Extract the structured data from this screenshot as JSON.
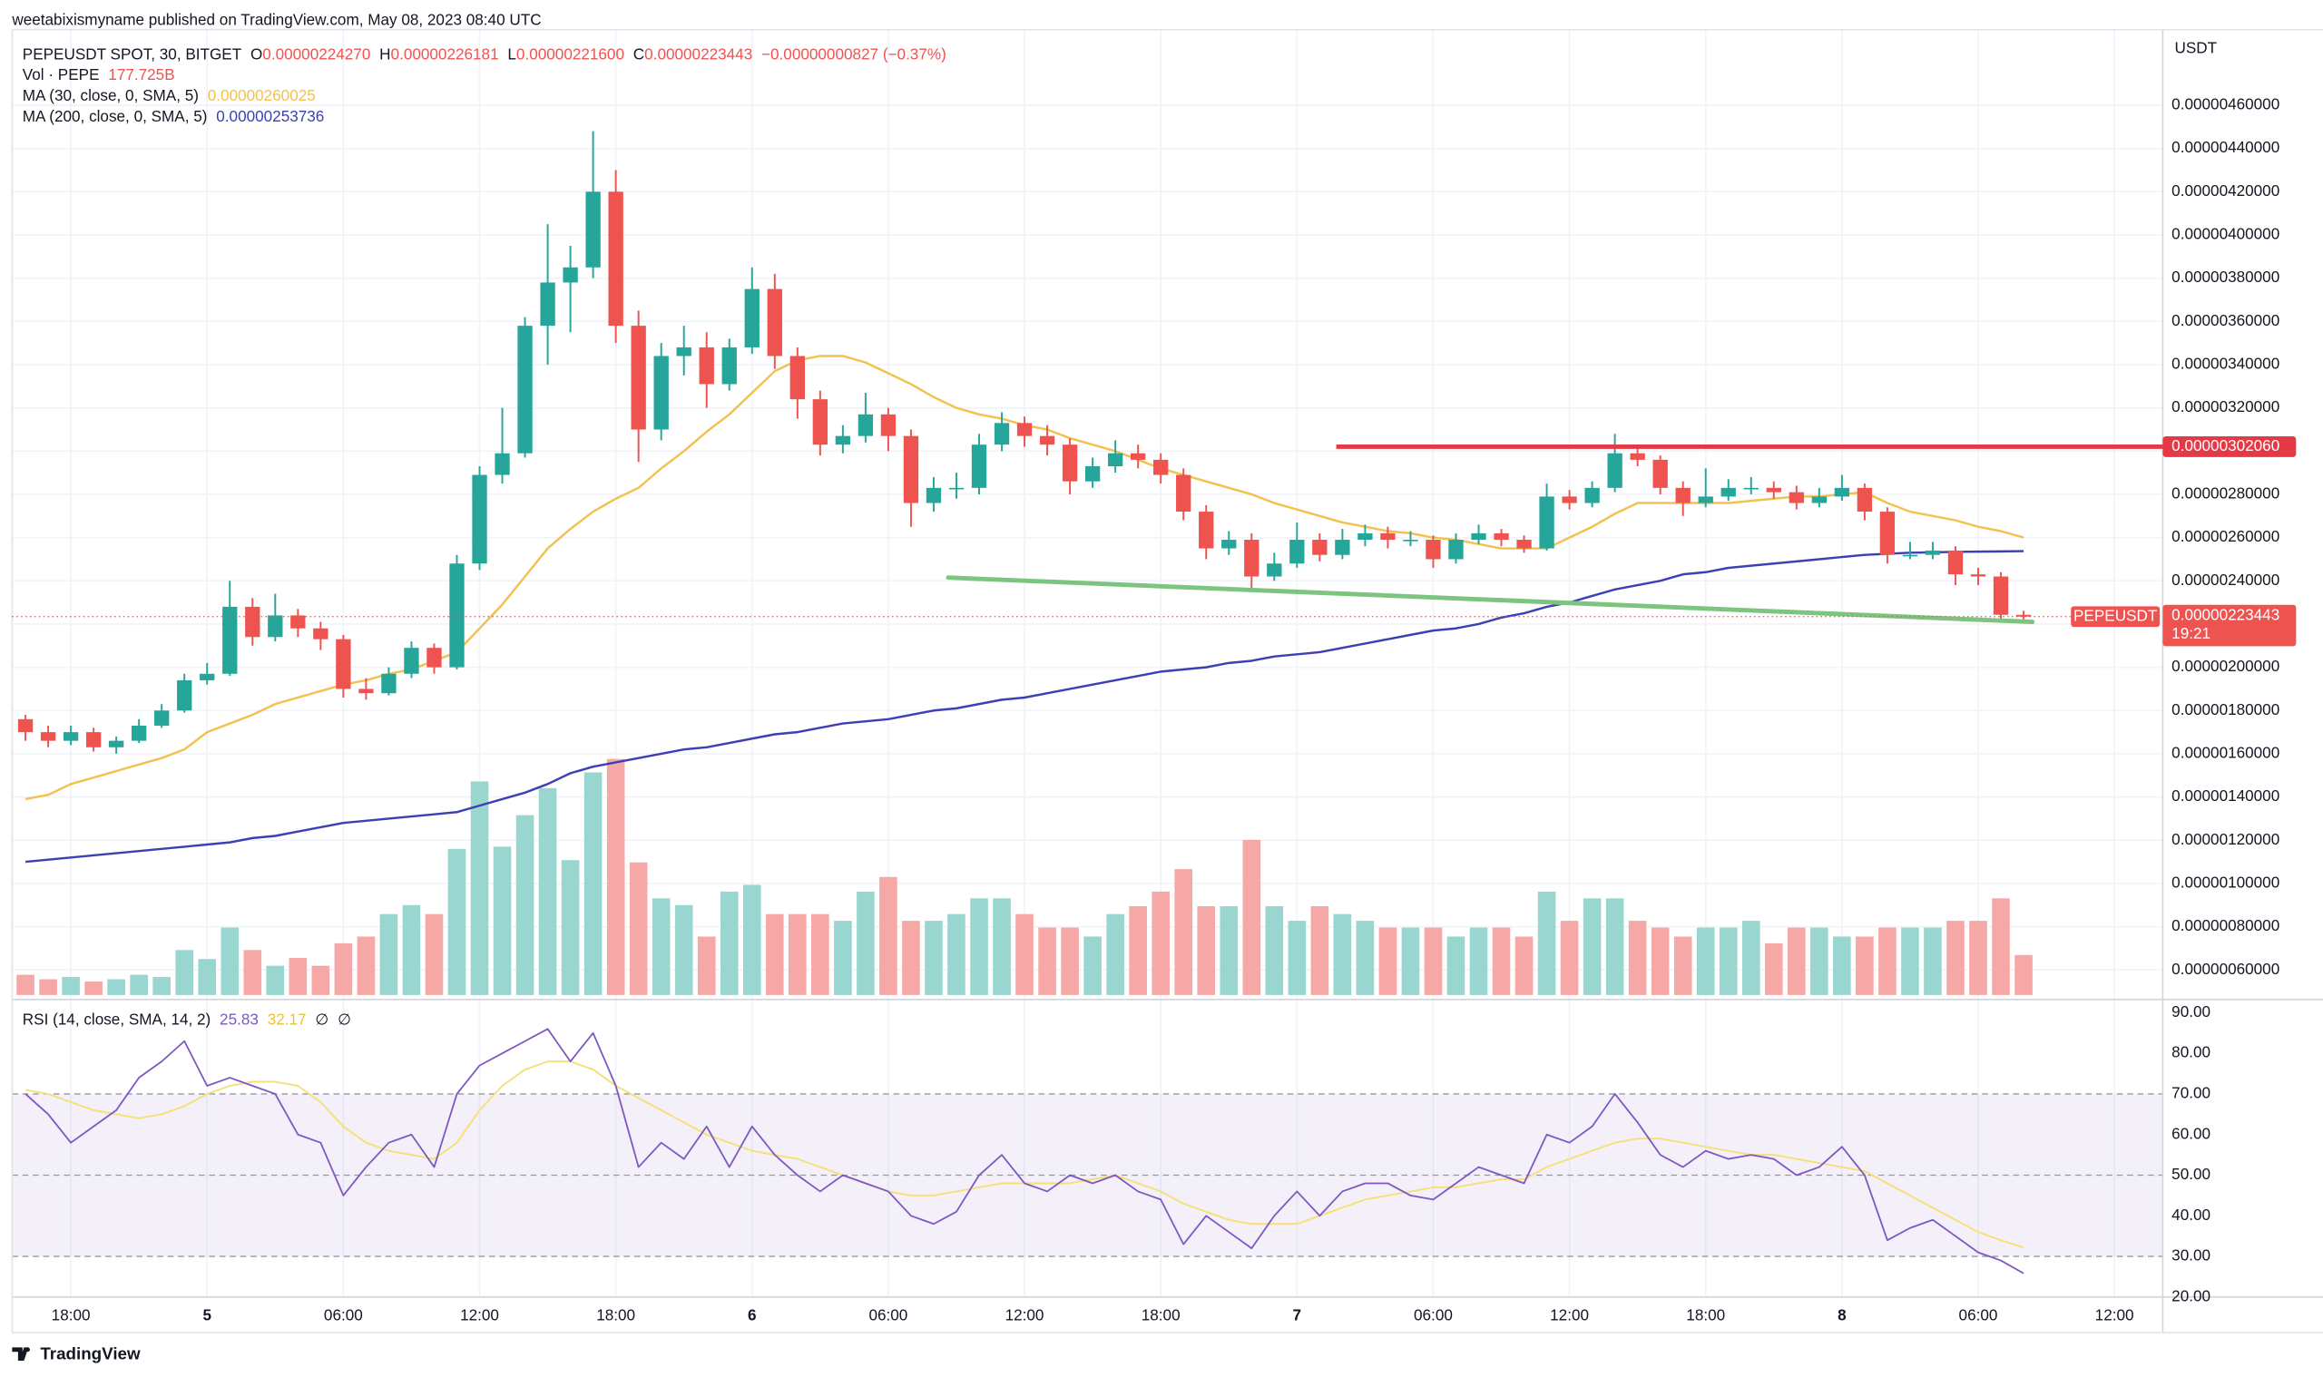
{
  "header": {
    "published": "weetabixismyname published on TradingView.com, May 08, 2023 08:40 UTC",
    "footer": "TradingView"
  },
  "chart_data": {
    "type": "candlestick",
    "symbol": "PEPEUSDT SPOT, 30, BITGET",
    "ohlc_legend": [
      {
        "key": "O",
        "value": "0.00000224270"
      },
      {
        "key": "H",
        "value": "0.00000226181"
      },
      {
        "key": "L",
        "value": "0.00000221600"
      },
      {
        "key": "C",
        "value": "0.00000223443"
      }
    ],
    "change": "−0.00000000827 (−0.37%)",
    "y_unit": "USDT",
    "up_color": "#26a69a",
    "down_color": "#ef5350",
    "volume_up_color": "#98d6cf",
    "volume_down_color": "#f5a8a6",
    "grid": true,
    "ylim": [
      4.84e-07,
      4.95e-06
    ],
    "yticks": [
      {
        "value": 6e-07,
        "label": "0.00000060000"
      },
      {
        "value": 8e-07,
        "label": "0.00000080000"
      },
      {
        "value": 1e-06,
        "label": "0.00000100000"
      },
      {
        "value": 1.2e-06,
        "label": "0.00000120000"
      },
      {
        "value": 1.4e-06,
        "label": "0.00000140000"
      },
      {
        "value": 1.6e-06,
        "label": "0.00000160000"
      },
      {
        "value": 1.8e-06,
        "label": "0.00000180000"
      },
      {
        "value": 2e-06,
        "label": "0.00000200000"
      },
      {
        "value": 2.2e-06,
        "label": "0.00000220000"
      },
      {
        "value": 2.4e-06,
        "label": "0.00000240000"
      },
      {
        "value": 2.6e-06,
        "label": "0.00000260000"
      },
      {
        "value": 2.8e-06,
        "label": "0.00000280000"
      },
      {
        "value": 3e-06,
        "label": "0.00000300000"
      },
      {
        "value": 3.2e-06,
        "label": "0.00000320000"
      },
      {
        "value": 3.4e-06,
        "label": "0.00000340000"
      },
      {
        "value": 3.6e-06,
        "label": "0.00000360000"
      },
      {
        "value": 3.8e-06,
        "label": "0.00000380000"
      },
      {
        "value": 4e-06,
        "label": "0.00000400000"
      },
      {
        "value": 4.2e-06,
        "label": "0.00000420000"
      },
      {
        "value": 4.4e-06,
        "label": "0.00000440000"
      },
      {
        "value": 4.6e-06,
        "label": "0.00000460000"
      }
    ],
    "xtick_labels": [
      "18:00",
      "5",
      "06:00",
      "12:00",
      "18:00",
      "6",
      "06:00",
      "12:00",
      "18:00",
      "7",
      "06:00",
      "12:00",
      "18:00",
      "8",
      "06:00",
      "12:00"
    ],
    "ohlc": [
      [
        1.76e-06,
        1.78e-06,
        1.66e-06,
        1.7e-06
      ],
      [
        1.7e-06,
        1.73e-06,
        1.63e-06,
        1.66e-06
      ],
      [
        1.66e-06,
        1.73e-06,
        1.64e-06,
        1.7e-06
      ],
      [
        1.7e-06,
        1.72e-06,
        1.61e-06,
        1.63e-06
      ],
      [
        1.63e-06,
        1.68e-06,
        1.6e-06,
        1.66e-06
      ],
      [
        1.66e-06,
        1.76e-06,
        1.65e-06,
        1.73e-06
      ],
      [
        1.73e-06,
        1.83e-06,
        1.72e-06,
        1.8e-06
      ],
      [
        1.8e-06,
        1.97e-06,
        1.79e-06,
        1.94e-06
      ],
      [
        1.94e-06,
        2.02e-06,
        1.92e-06,
        1.97e-06
      ],
      [
        1.97e-06,
        2.4e-06,
        1.96e-06,
        2.28e-06
      ],
      [
        2.28e-06,
        2.32e-06,
        2.1e-06,
        2.14e-06
      ],
      [
        2.14e-06,
        2.34e-06,
        2.12e-06,
        2.24e-06
      ],
      [
        2.24e-06,
        2.27e-06,
        2.14e-06,
        2.18e-06
      ],
      [
        2.18e-06,
        2.21e-06,
        2.08e-06,
        2.13e-06
      ],
      [
        2.13e-06,
        2.15e-06,
        1.86e-06,
        1.9e-06
      ],
      [
        1.9e-06,
        1.95e-06,
        1.85e-06,
        1.88e-06
      ],
      [
        1.88e-06,
        2e-06,
        1.87e-06,
        1.97e-06
      ],
      [
        1.97e-06,
        2.12e-06,
        1.95e-06,
        2.09e-06
      ],
      [
        2.09e-06,
        2.11e-06,
        1.97e-06,
        2e-06
      ],
      [
        2e-06,
        2.52e-06,
        1.99e-06,
        2.48e-06
      ],
      [
        2.48e-06,
        2.93e-06,
        2.45e-06,
        2.89e-06
      ],
      [
        2.89e-06,
        3.2e-06,
        2.85e-06,
        2.99e-06
      ],
      [
        2.99e-06,
        3.62e-06,
        2.97e-06,
        3.58e-06
      ],
      [
        3.58e-06,
        4.05e-06,
        3.4e-06,
        3.78e-06
      ],
      [
        3.78e-06,
        3.95e-06,
        3.55e-06,
        3.85e-06
      ],
      [
        3.85e-06,
        4.48e-06,
        3.8e-06,
        4.2e-06
      ],
      [
        4.2e-06,
        4.3e-06,
        3.5e-06,
        3.58e-06
      ],
      [
        3.58e-06,
        3.65e-06,
        2.95e-06,
        3.1e-06
      ],
      [
        3.1e-06,
        3.5e-06,
        3.05e-06,
        3.44e-06
      ],
      [
        3.44e-06,
        3.58e-06,
        3.35e-06,
        3.48e-06
      ],
      [
        3.48e-06,
        3.55e-06,
        3.2e-06,
        3.31e-06
      ],
      [
        3.31e-06,
        3.52e-06,
        3.28e-06,
        3.48e-06
      ],
      [
        3.48e-06,
        3.85e-06,
        3.45e-06,
        3.75e-06
      ],
      [
        3.75e-06,
        3.82e-06,
        3.38e-06,
        3.44e-06
      ],
      [
        3.44e-06,
        3.48e-06,
        3.15e-06,
        3.24e-06
      ],
      [
        3.24e-06,
        3.28e-06,
        2.98e-06,
        3.03e-06
      ],
      [
        3.03e-06,
        3.12e-06,
        2.99e-06,
        3.07e-06
      ],
      [
        3.07e-06,
        3.27e-06,
        3.04e-06,
        3.17e-06
      ],
      [
        3.17e-06,
        3.2e-06,
        3e-06,
        3.07e-06
      ],
      [
        3.07e-06,
        3.1e-06,
        2.65e-06,
        2.76e-06
      ],
      [
        2.76e-06,
        2.88e-06,
        2.72e-06,
        2.83e-06
      ],
      [
        2.83e-06,
        2.9e-06,
        2.78e-06,
        2.83e-06
      ],
      [
        2.83e-06,
        3.08e-06,
        2.8e-06,
        3.03e-06
      ],
      [
        3.03e-06,
        3.18e-06,
        3e-06,
        3.13e-06
      ],
      [
        3.13e-06,
        3.16e-06,
        3.02e-06,
        3.07e-06
      ],
      [
        3.07e-06,
        3.12e-06,
        2.98e-06,
        3.03e-06
      ],
      [
        3.03e-06,
        3.06e-06,
        2.8e-06,
        2.86e-06
      ],
      [
        2.86e-06,
        2.97e-06,
        2.83e-06,
        2.93e-06
      ],
      [
        2.93e-06,
        3.05e-06,
        2.9e-06,
        2.99e-06
      ],
      [
        2.99e-06,
        3.03e-06,
        2.92e-06,
        2.96e-06
      ],
      [
        2.96e-06,
        2.99e-06,
        2.85e-06,
        2.89e-06
      ],
      [
        2.89e-06,
        2.92e-06,
        2.68e-06,
        2.72e-06
      ],
      [
        2.72e-06,
        2.75e-06,
        2.5e-06,
        2.55e-06
      ],
      [
        2.55e-06,
        2.63e-06,
        2.52e-06,
        2.59e-06
      ],
      [
        2.59e-06,
        2.62e-06,
        2.36e-06,
        2.42e-06
      ],
      [
        2.42e-06,
        2.53e-06,
        2.4e-06,
        2.48e-06
      ],
      [
        2.48e-06,
        2.67e-06,
        2.46e-06,
        2.59e-06
      ],
      [
        2.59e-06,
        2.62e-06,
        2.49e-06,
        2.52e-06
      ],
      [
        2.52e-06,
        2.64e-06,
        2.5e-06,
        2.59e-06
      ],
      [
        2.59e-06,
        2.66e-06,
        2.56e-06,
        2.62e-06
      ],
      [
        2.62e-06,
        2.65e-06,
        2.55e-06,
        2.59e-06
      ],
      [
        2.59e-06,
        2.63e-06,
        2.56e-06,
        2.59e-06
      ],
      [
        2.59e-06,
        2.61e-06,
        2.46e-06,
        2.5e-06
      ],
      [
        2.5e-06,
        2.62e-06,
        2.48e-06,
        2.59e-06
      ],
      [
        2.59e-06,
        2.66e-06,
        2.57e-06,
        2.62e-06
      ],
      [
        2.62e-06,
        2.64e-06,
        2.56e-06,
        2.59e-06
      ],
      [
        2.59e-06,
        2.61e-06,
        2.53e-06,
        2.55e-06
      ],
      [
        2.55e-06,
        2.85e-06,
        2.54e-06,
        2.79e-06
      ],
      [
        2.79e-06,
        2.82e-06,
        2.73e-06,
        2.76e-06
      ],
      [
        2.76e-06,
        2.86e-06,
        2.74e-06,
        2.83e-06
      ],
      [
        2.83e-06,
        3.08e-06,
        2.81e-06,
        2.99e-06
      ],
      [
        2.99e-06,
        3.03e-06,
        2.93e-06,
        2.96e-06
      ],
      [
        2.96e-06,
        2.98e-06,
        2.8e-06,
        2.83e-06
      ],
      [
        2.83e-06,
        2.86e-06,
        2.7e-06,
        2.76e-06
      ],
      [
        2.76e-06,
        2.92e-06,
        2.74e-06,
        2.79e-06
      ],
      [
        2.79e-06,
        2.87e-06,
        2.77e-06,
        2.83e-06
      ],
      [
        2.83e-06,
        2.88e-06,
        2.8e-06,
        2.83e-06
      ],
      [
        2.83e-06,
        2.86e-06,
        2.78e-06,
        2.81e-06
      ],
      [
        2.81e-06,
        2.84e-06,
        2.73e-06,
        2.76e-06
      ],
      [
        2.76e-06,
        2.83e-06,
        2.74e-06,
        2.79e-06
      ],
      [
        2.79e-06,
        2.89e-06,
        2.77e-06,
        2.83e-06
      ],
      [
        2.83e-06,
        2.85e-06,
        2.68e-06,
        2.72e-06
      ],
      [
        2.72e-06,
        2.74e-06,
        2.48e-06,
        2.52e-06
      ],
      [
        2.52e-06,
        2.58e-06,
        2.5e-06,
        2.52e-06
      ],
      [
        2.52e-06,
        2.58e-06,
        2.5e-06,
        2.54e-06
      ],
      [
        2.54e-06,
        2.56e-06,
        2.38e-06,
        2.43e-06
      ],
      [
        2.43e-06,
        2.46e-06,
        2.38e-06,
        2.42e-06
      ],
      [
        2.42e-06,
        2.44e-06,
        2.22e-06,
        2.2427e-06
      ],
      [
        2.2427e-06,
        2.26181e-06,
        2.216e-06,
        2.23443e-06
      ]
    ],
    "moving_averages": [
      {
        "name": "MA (30, close, 0, SMA, 5)",
        "value_label": "0.00000260025",
        "color": "#f2c14e",
        "values": [
          1.39e-06,
          1.41e-06,
          1.46e-06,
          1.49e-06,
          1.52e-06,
          1.55e-06,
          1.58e-06,
          1.62e-06,
          1.7e-06,
          1.74e-06,
          1.78e-06,
          1.83e-06,
          1.86e-06,
          1.89e-06,
          1.92e-06,
          1.94e-06,
          1.97e-06,
          1.99e-06,
          2.03e-06,
          2.07e-06,
          2.18e-06,
          2.29e-06,
          2.42e-06,
          2.55e-06,
          2.64e-06,
          2.72e-06,
          2.78e-06,
          2.83e-06,
          2.92e-06,
          3e-06,
          3.09e-06,
          3.17e-06,
          3.27e-06,
          3.37e-06,
          3.42e-06,
          3.44e-06,
          3.44e-06,
          3.41e-06,
          3.36e-06,
          3.31e-06,
          3.25e-06,
          3.2e-06,
          3.17e-06,
          3.15e-06,
          3.12e-06,
          3.1e-06,
          3.06e-06,
          3.03e-06,
          3e-06,
          2.96e-06,
          2.92e-06,
          2.89e-06,
          2.86e-06,
          2.83e-06,
          2.8e-06,
          2.76e-06,
          2.73e-06,
          2.7e-06,
          2.67e-06,
          2.65e-06,
          2.63e-06,
          2.62e-06,
          2.6e-06,
          2.59e-06,
          2.57e-06,
          2.55e-06,
          2.55e-06,
          2.55e-06,
          2.6e-06,
          2.65e-06,
          2.71e-06,
          2.76e-06,
          2.76e-06,
          2.76e-06,
          2.76e-06,
          2.76e-06,
          2.77e-06,
          2.78e-06,
          2.79e-06,
          2.79e-06,
          2.8e-06,
          2.81e-06,
          2.76e-06,
          2.72e-06,
          2.7e-06,
          2.68e-06,
          2.65e-06,
          2.63e-06,
          2.60025e-06
        ]
      },
      {
        "name": "MA (200, close, 0, SMA, 5)",
        "value_label": "0.00000253736",
        "color": "#3f3fb5",
        "values": [
          1.1e-06,
          1.11e-06,
          1.12e-06,
          1.13e-06,
          1.14e-06,
          1.15e-06,
          1.16e-06,
          1.17e-06,
          1.18e-06,
          1.19e-06,
          1.21e-06,
          1.22e-06,
          1.24e-06,
          1.26e-06,
          1.28e-06,
          1.29e-06,
          1.3e-06,
          1.31e-06,
          1.32e-06,
          1.33e-06,
          1.36e-06,
          1.39e-06,
          1.42e-06,
          1.46e-06,
          1.51e-06,
          1.54e-06,
          1.56e-06,
          1.58e-06,
          1.6e-06,
          1.62e-06,
          1.63e-06,
          1.65e-06,
          1.67e-06,
          1.69e-06,
          1.7e-06,
          1.72e-06,
          1.74e-06,
          1.75e-06,
          1.76e-06,
          1.78e-06,
          1.8e-06,
          1.81e-06,
          1.83e-06,
          1.85e-06,
          1.86e-06,
          1.88e-06,
          1.9e-06,
          1.92e-06,
          1.94e-06,
          1.96e-06,
          1.98e-06,
          1.99e-06,
          2e-06,
          2.02e-06,
          2.03e-06,
          2.05e-06,
          2.06e-06,
          2.07e-06,
          2.09e-06,
          2.11e-06,
          2.13e-06,
          2.15e-06,
          2.17e-06,
          2.18e-06,
          2.2e-06,
          2.23e-06,
          2.25e-06,
          2.28e-06,
          2.3e-06,
          2.33e-06,
          2.36e-06,
          2.38e-06,
          2.4e-06,
          2.43e-06,
          2.44e-06,
          2.46e-06,
          2.47e-06,
          2.48e-06,
          2.49e-06,
          2.5e-06,
          2.51e-06,
          2.52e-06,
          2.525e-06,
          2.53e-06,
          2.532e-06,
          2.534e-06,
          2.535e-06,
          2.536e-06,
          2.53736e-06
        ]
      }
    ],
    "hline": {
      "value": 3.0206e-06,
      "label": "0.00000302060",
      "color": "#e53946"
    },
    "trendline": {
      "color": "#7cc47f",
      "values": [
        2.415e-06,
        2.21e-06
      ]
    },
    "last_price": {
      "symbol": "PEPEUSDT",
      "label": "0.00000223443",
      "countdown": "19:21",
      "color": "#ef5350"
    },
    "volume": {
      "title": "Vol · PEPE",
      "value_label": "177.725B",
      "ylim": [
        0,
        1100
      ],
      "values": [
        90,
        70,
        80,
        60,
        70,
        90,
        80,
        200,
        160,
        300,
        200,
        130,
        165,
        130,
        230,
        260,
        360,
        400,
        360,
        650,
        950,
        660,
        800,
        920,
        600,
        990,
        1050,
        590,
        430,
        400,
        260,
        460,
        490,
        360,
        360,
        360,
        330,
        460,
        525,
        330,
        330,
        360,
        430,
        430,
        360,
        300,
        300,
        260,
        360,
        395,
        460,
        560,
        395,
        395,
        690,
        395,
        330,
        395,
        360,
        330,
        300,
        300,
        300,
        260,
        300,
        300,
        260,
        460,
        330,
        430,
        430,
        330,
        300,
        260,
        300,
        300,
        330,
        230,
        300,
        300,
        260,
        260,
        300,
        300,
        300,
        330,
        330,
        430,
        177.725
      ]
    },
    "rsi": {
      "title": "RSI (14, close, SMA, 14, 2)",
      "value_label": "25.83",
      "sma_label": "32.17",
      "flags": [
        "∅",
        "∅"
      ],
      "color": "#7e57c2",
      "sma_color": "#f5e07a",
      "band": [
        30,
        70
      ],
      "levels": [
        30,
        50,
        70
      ],
      "ylim": [
        20,
        92.9
      ],
      "yticks": [
        {
          "value": 20,
          "label": "20.00"
        },
        {
          "value": 30,
          "label": "30.00"
        },
        {
          "value": 40,
          "label": "40.00"
        },
        {
          "value": 50,
          "label": "50.00"
        },
        {
          "value": 60,
          "label": "60.00"
        },
        {
          "value": 70,
          "label": "70.00"
        },
        {
          "value": 80,
          "label": "80.00"
        },
        {
          "value": 90,
          "label": "90.00"
        }
      ],
      "values": [
        70,
        65,
        58,
        62,
        66,
        74,
        78,
        83,
        72,
        74,
        72,
        70,
        60,
        58,
        45,
        52,
        58,
        60,
        52,
        70,
        77,
        80,
        83,
        86,
        78,
        85,
        72,
        52,
        58,
        54,
        62,
        52,
        62,
        55,
        50,
        46,
        50,
        48,
        46,
        40,
        38,
        41,
        50,
        55,
        48,
        46,
        50,
        48,
        50,
        46,
        44,
        33,
        40,
        36,
        32,
        40,
        46,
        40,
        46,
        48,
        48,
        45,
        44,
        48,
        52,
        50,
        48,
        60,
        58,
        62,
        70,
        63,
        55,
        52,
        56,
        54,
        55,
        54,
        50,
        52,
        57,
        50,
        34,
        37,
        39,
        35,
        31,
        29,
        25.83
      ],
      "sma_values": [
        71,
        70,
        68,
        66,
        65,
        64,
        65,
        67,
        70,
        72,
        73,
        73,
        72,
        68,
        62,
        58,
        56,
        55,
        54,
        58,
        66,
        72,
        76,
        78,
        78,
        76,
        72,
        69,
        66,
        63,
        60,
        58,
        56,
        55,
        54,
        52,
        50,
        48,
        46,
        45,
        45,
        46,
        47,
        48,
        48,
        48,
        48,
        49,
        50,
        48,
        46,
        43,
        41,
        39,
        38,
        38,
        38,
        40,
        42,
        44,
        45,
        46,
        47,
        47,
        48,
        49,
        49,
        52,
        54,
        56,
        58,
        59,
        59,
        58,
        57,
        56,
        55,
        55,
        54,
        53,
        52,
        51,
        48,
        45,
        42,
        39,
        36,
        34,
        32.17
      ]
    }
  }
}
